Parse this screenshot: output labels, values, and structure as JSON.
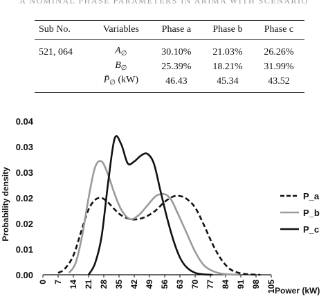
{
  "caption": "A NOMINAL PHASE PARAMETERS IN ARIMA WITH SCENARIO",
  "table": {
    "headers": [
      "Sub No.",
      "Variables",
      "Phase a",
      "Phase b",
      "Phase c"
    ],
    "sub_no": "521, 064",
    "rows": [
      {
        "var_main": "A",
        "var_sub": "∅",
        "var_unit": "",
        "a": "30.10%",
        "b": "21.03%",
        "c": "26.26%"
      },
      {
        "var_main": "B",
        "var_sub": "∅",
        "var_unit": "",
        "a": "25.39%",
        "b": "18.21%",
        "c": "31.99%"
      },
      {
        "var_main": "P̄",
        "var_sub": "∅",
        "var_unit": " (kW)",
        "a": "46.43",
        "b": "45.34",
        "c": "43.52"
      }
    ]
  },
  "chart_data": {
    "type": "line",
    "xlabel": "Power (kW)",
    "ylabel": "Probability density",
    "x_ticks": [
      0,
      7,
      14,
      21,
      28,
      35,
      42,
      49,
      56,
      63,
      70,
      77,
      84,
      91,
      98,
      105
    ],
    "y_ticks": [
      "0.00",
      "0.01",
      "0.02",
      "0.02",
      "0.03",
      "0.03",
      "0.04"
    ],
    "xlim": [
      0,
      105
    ],
    "ylim": [
      0,
      0.04
    ],
    "legend_position": "right",
    "series": [
      {
        "name": "P_a",
        "style": "dashed",
        "color": "#111111",
        "x": [
          7,
          10,
          14,
          18,
          21,
          24,
          27,
          30,
          33,
          36,
          40,
          44,
          48,
          52,
          56,
          60,
          63,
          66,
          70,
          74,
          78,
          82,
          86,
          90,
          95,
          100
        ],
        "y": [
          0.0005,
          0.0015,
          0.005,
          0.012,
          0.017,
          0.0195,
          0.02,
          0.0188,
          0.017,
          0.0155,
          0.0145,
          0.0145,
          0.0153,
          0.0168,
          0.019,
          0.0204,
          0.0205,
          0.0198,
          0.0175,
          0.013,
          0.008,
          0.004,
          0.0015,
          0.0005,
          0.0001,
          0.0
        ]
      },
      {
        "name": "P_b",
        "style": "solid",
        "color": "#9a9a9a",
        "x": [
          12,
          15,
          18,
          21,
          24,
          27,
          30,
          33,
          36,
          40,
          44,
          48,
          52,
          56,
          59,
          62,
          66,
          70,
          74,
          78,
          82,
          86,
          90
        ],
        "y": [
          0.0005,
          0.003,
          0.01,
          0.02,
          0.028,
          0.0295,
          0.026,
          0.021,
          0.017,
          0.0145,
          0.0155,
          0.018,
          0.0205,
          0.021,
          0.0195,
          0.016,
          0.011,
          0.006,
          0.0025,
          0.001,
          0.0003,
          0.0001,
          0.0
        ]
      },
      {
        "name": "P_c",
        "style": "solid",
        "color": "#111111",
        "x": [
          21,
          24,
          27,
          30,
          33,
          36,
          39,
          42,
          45,
          48,
          51,
          54,
          57,
          60,
          63,
          66,
          70,
          74,
          78
        ],
        "y": [
          0.0,
          0.003,
          0.01,
          0.024,
          0.0355,
          0.034,
          0.029,
          0.0295,
          0.031,
          0.0315,
          0.029,
          0.022,
          0.015,
          0.009,
          0.0045,
          0.002,
          0.0005,
          0.0001,
          0.0
        ]
      }
    ]
  }
}
